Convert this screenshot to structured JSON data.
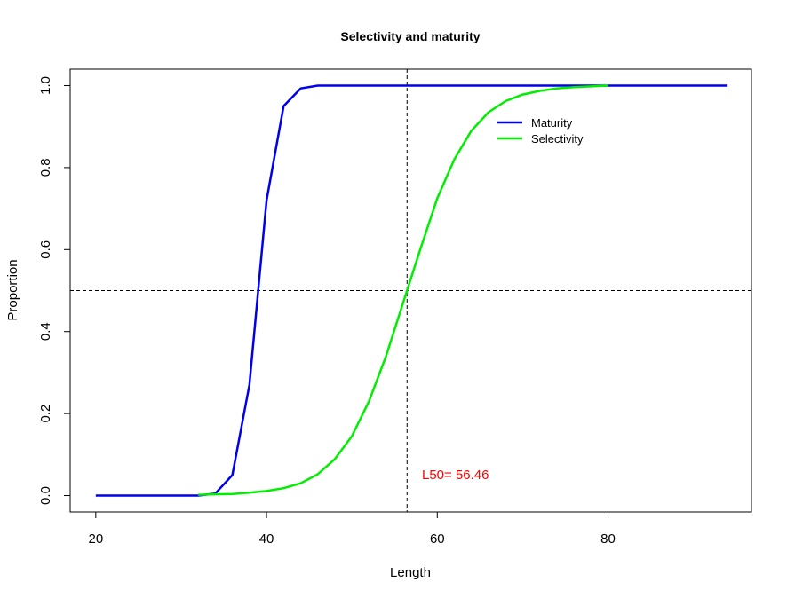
{
  "chart_data": {
    "type": "line",
    "title": "Selectivity and maturity",
    "xlabel": "Length",
    "ylabel": "Proportion",
    "xlim": [
      17.0,
      96.8
    ],
    "ylim": [
      -0.04,
      1.04
    ],
    "x_ticks": [
      20,
      40,
      60,
      80
    ],
    "y_ticks": [
      0.0,
      0.2,
      0.4,
      0.6,
      0.8,
      1.0
    ],
    "x_tick_labels": [
      "20",
      "40",
      "60",
      "80"
    ],
    "y_tick_labels": [
      "0.0",
      "0.2",
      "0.4",
      "0.6",
      "0.8",
      "1.0"
    ],
    "grid": false,
    "legend_position": "top-right",
    "series": [
      {
        "name": "Maturity",
        "color": "#0000ee",
        "x": [
          20,
          32,
          34,
          36,
          38,
          40,
          42,
          44,
          46,
          48,
          60,
          80,
          94
        ],
        "y": [
          0.0,
          0.0,
          0.005,
          0.05,
          0.27,
          0.72,
          0.95,
          0.993,
          1.0,
          1.0,
          1.0,
          1.0,
          1.0
        ]
      },
      {
        "name": "Selectivity",
        "color": "#00ee00",
        "x": [
          32,
          34,
          36,
          38,
          40,
          42,
          44,
          46,
          48,
          50,
          52,
          54,
          56,
          58,
          60,
          62,
          64,
          66,
          68,
          70,
          72,
          74,
          76,
          78,
          80
        ],
        "y": [
          0.002,
          0.003,
          0.004,
          0.007,
          0.011,
          0.018,
          0.03,
          0.052,
          0.089,
          0.145,
          0.23,
          0.34,
          0.47,
          0.6,
          0.725,
          0.82,
          0.89,
          0.935,
          0.962,
          0.978,
          0.987,
          0.993,
          0.996,
          0.998,
          1.0
        ]
      }
    ],
    "reference_lines": {
      "vertical_x": 56.46,
      "horizontal_y": 0.5
    },
    "annotation": {
      "text": "L50= 56.46",
      "x": 58.2,
      "y": 0.04,
      "color": "#ff0000"
    }
  }
}
